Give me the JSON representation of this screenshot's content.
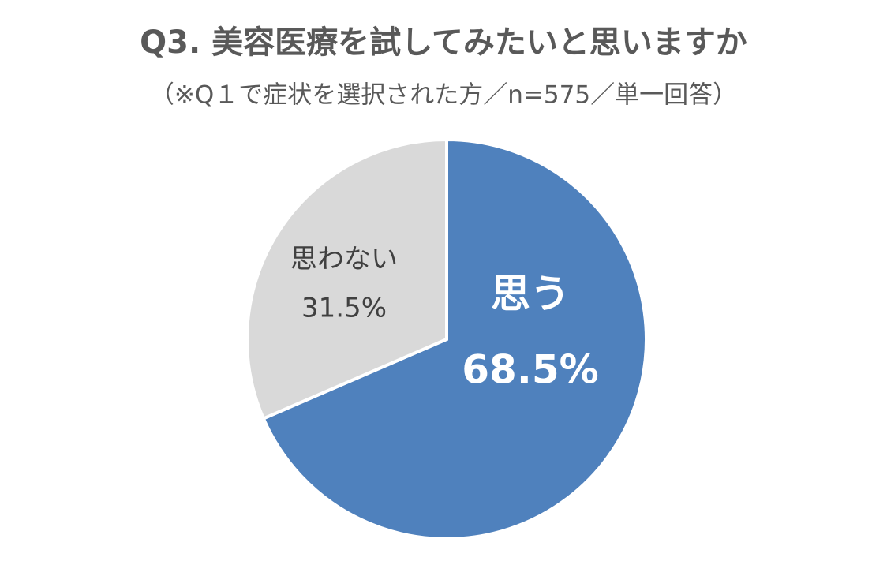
{
  "chart_data": {
    "type": "pie",
    "title": "Q3. 美容医療を試してみたいと思いますか",
    "subtitle": "（※Q１で症状を選択された方／n=575／単一回答）",
    "categories": [
      "思う",
      "思わない"
    ],
    "values": [
      68.5,
      31.5
    ],
    "value_labels": [
      "68.5%",
      "31.5%"
    ],
    "colors": [
      "#4f81bd",
      "#d9d9d9"
    ]
  }
}
